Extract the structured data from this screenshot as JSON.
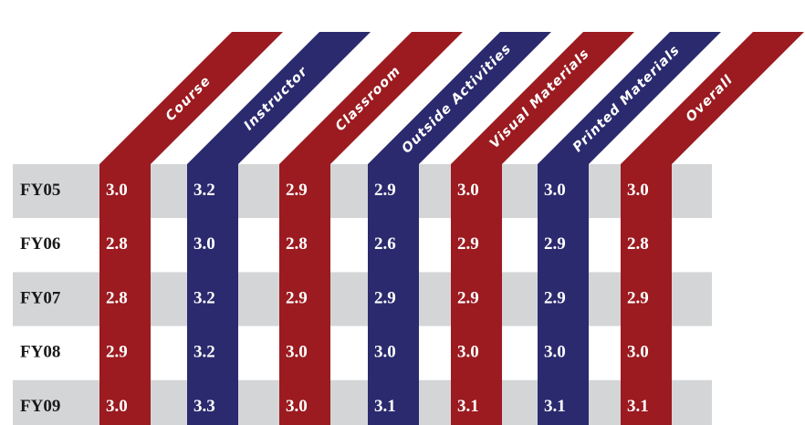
{
  "chart_data": {
    "type": "table",
    "columns": [
      {
        "label": "Course",
        "color": "#9b1b20"
      },
      {
        "label": "Instructor",
        "color": "#2b2a6e"
      },
      {
        "label": "Classroom",
        "color": "#9b1b20"
      },
      {
        "label": "Outside Activities",
        "color": "#2b2a6e"
      },
      {
        "label": "Visual Materials",
        "color": "#9b1b20"
      },
      {
        "label": "Printed Materials",
        "color": "#2b2a6e"
      },
      {
        "label": "Overall",
        "color": "#9b1b20"
      }
    ],
    "rows": [
      {
        "label": "FY05",
        "values": [
          "3.0",
          "3.2",
          "2.9",
          "2.9",
          "3.0",
          "3.0",
          "3.0"
        ]
      },
      {
        "label": "FY06",
        "values": [
          "2.8",
          "3.0",
          "2.8",
          "2.6",
          "2.9",
          "2.9",
          "2.8"
        ]
      },
      {
        "label": "FY07",
        "values": [
          "2.8",
          "3.2",
          "2.9",
          "2.9",
          "2.9",
          "2.9",
          "2.9"
        ]
      },
      {
        "label": "FY08",
        "values": [
          "2.9",
          "3.2",
          "3.0",
          "3.0",
          "3.0",
          "3.0",
          "3.0"
        ]
      },
      {
        "label": "FY09",
        "values": [
          "3.0",
          "3.3",
          "3.0",
          "3.1",
          "3.1",
          "3.1",
          "3.1"
        ]
      }
    ],
    "band_colors": {
      "shaded": "#d4d5d7",
      "plain": "#ffffff"
    }
  }
}
